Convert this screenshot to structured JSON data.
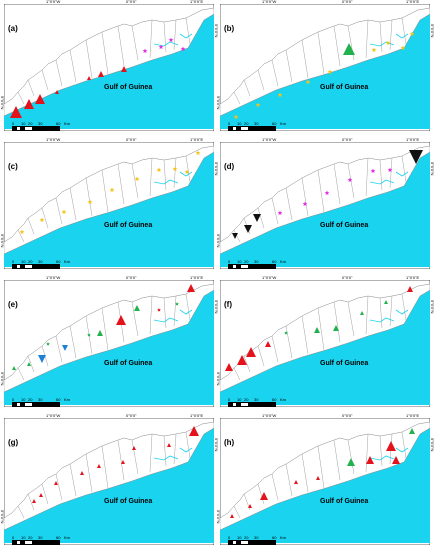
{
  "gulf_label": "Gulf of Guinea",
  "coord_top": [
    "1°0'0\"W",
    "0°0'0\"",
    "1°0'0\"E"
  ],
  "coord_left": [
    "5°0'0\"N"
  ],
  "coord_right": [
    "5°0'0\"N"
  ],
  "scale": {
    "ticks": [
      "0",
      "10",
      "20",
      "30",
      "60"
    ],
    "unit": "Km"
  },
  "colors": {
    "sea": "#19d3ef",
    "land_border": "#888888",
    "red": "#e3121b",
    "green": "#23b14d",
    "blue": "#1e7fd6",
    "black": "#111111",
    "magenta": "#e22ee2",
    "yellow": "#f4c21a"
  },
  "panels": [
    {
      "label": "(a)",
      "markers": [
        {
          "x": 12,
          "y": 108,
          "s": 6,
          "t": "tri",
          "c": "red"
        },
        {
          "x": 25,
          "y": 100,
          "s": 5,
          "t": "tri",
          "c": "red"
        },
        {
          "x": 36,
          "y": 95,
          "s": 5,
          "t": "tri",
          "c": "red"
        },
        {
          "x": 53,
          "y": 88,
          "s": 2,
          "t": "tri",
          "c": "red"
        },
        {
          "x": 85,
          "y": 74,
          "s": 2,
          "t": "tri",
          "c": "red"
        },
        {
          "x": 97,
          "y": 70,
          "s": 3,
          "t": "tri",
          "c": "red"
        },
        {
          "x": 120,
          "y": 65,
          "s": 3,
          "t": "tri",
          "c": "red"
        },
        {
          "x": 141,
          "y": 47,
          "s": 1.5,
          "t": "star",
          "c": "magenta"
        },
        {
          "x": 157,
          "y": 43,
          "s": 1.5,
          "t": "star",
          "c": "magenta"
        },
        {
          "x": 167,
          "y": 36,
          "s": 1.5,
          "t": "star",
          "c": "magenta"
        },
        {
          "x": 179,
          "y": 45,
          "s": 1.5,
          "t": "star",
          "c": "magenta"
        }
      ]
    },
    {
      "label": "(b)",
      "markers": [
        {
          "x": 16,
          "y": 113,
          "s": 1.5,
          "t": "star",
          "c": "yellow"
        },
        {
          "x": 38,
          "y": 101,
          "s": 1.5,
          "t": "star",
          "c": "yellow"
        },
        {
          "x": 60,
          "y": 91,
          "s": 1.5,
          "t": "star",
          "c": "yellow"
        },
        {
          "x": 88,
          "y": 78,
          "s": 1.5,
          "t": "star",
          "c": "yellow"
        },
        {
          "x": 110,
          "y": 68,
          "s": 1.5,
          "t": "star",
          "c": "yellow"
        },
        {
          "x": 129,
          "y": 45,
          "s": 6,
          "t": "tri",
          "c": "green"
        },
        {
          "x": 154,
          "y": 46,
          "s": 1.5,
          "t": "star",
          "c": "yellow"
        },
        {
          "x": 168,
          "y": 39,
          "s": 1.5,
          "t": "star",
          "c": "yellow"
        },
        {
          "x": 183,
          "y": 44,
          "s": 1.5,
          "t": "star",
          "c": "yellow"
        },
        {
          "x": 192,
          "y": 30,
          "s": 1.5,
          "t": "star",
          "c": "yellow"
        }
      ]
    },
    {
      "label": "(c)",
      "markers": [
        {
          "x": 18,
          "y": 90,
          "s": 1.5,
          "t": "star",
          "c": "yellow"
        },
        {
          "x": 38,
          "y": 78,
          "s": 1.5,
          "t": "star",
          "c": "yellow"
        },
        {
          "x": 60,
          "y": 70,
          "s": 1.5,
          "t": "star",
          "c": "yellow"
        },
        {
          "x": 86,
          "y": 60,
          "s": 1.5,
          "t": "star",
          "c": "yellow"
        },
        {
          "x": 108,
          "y": 48,
          "s": 1.5,
          "t": "star",
          "c": "yellow"
        },
        {
          "x": 133,
          "y": 37,
          "s": 1.5,
          "t": "star",
          "c": "yellow"
        },
        {
          "x": 155,
          "y": 28,
          "s": 1.5,
          "t": "star",
          "c": "yellow"
        },
        {
          "x": 171,
          "y": 27,
          "s": 1.5,
          "t": "star",
          "c": "yellow"
        },
        {
          "x": 183,
          "y": 30,
          "s": 1.5,
          "t": "star",
          "c": "yellow"
        },
        {
          "x": 194,
          "y": 11,
          "s": 1.5,
          "t": "star",
          "c": "yellow"
        }
      ]
    },
    {
      "label": "(d)",
      "markers": [
        {
          "x": 15,
          "y": 94,
          "s": 3,
          "t": "tridown",
          "c": "black"
        },
        {
          "x": 28,
          "y": 87,
          "s": 4,
          "t": "tridown",
          "c": "black"
        },
        {
          "x": 37,
          "y": 76,
          "s": 4,
          "t": "tridown",
          "c": "black"
        },
        {
          "x": 60,
          "y": 71,
          "s": 1.5,
          "t": "star",
          "c": "magenta"
        },
        {
          "x": 85,
          "y": 62,
          "s": 1.5,
          "t": "star",
          "c": "magenta"
        },
        {
          "x": 107,
          "y": 51,
          "s": 1.5,
          "t": "star",
          "c": "magenta"
        },
        {
          "x": 130,
          "y": 38,
          "s": 1.5,
          "t": "star",
          "c": "magenta"
        },
        {
          "x": 153,
          "y": 29,
          "s": 1.5,
          "t": "star",
          "c": "magenta"
        },
        {
          "x": 170,
          "y": 28,
          "s": 1.5,
          "t": "star",
          "c": "magenta"
        },
        {
          "x": 196,
          "y": 15,
          "s": 7,
          "t": "tridown",
          "c": "black"
        }
      ]
    },
    {
      "label": "(e)",
      "markers": [
        {
          "x": 10,
          "y": 88,
          "s": 2,
          "t": "tri",
          "c": "green"
        },
        {
          "x": 25,
          "y": 84,
          "s": 2,
          "t": "tri",
          "c": "green"
        },
        {
          "x": 38,
          "y": 79,
          "s": 4,
          "t": "tridown",
          "c": "blue"
        },
        {
          "x": 44,
          "y": 64,
          "s": 1,
          "t": "star",
          "c": "green"
        },
        {
          "x": 61,
          "y": 68,
          "s": 3,
          "t": "tridown",
          "c": "blue"
        },
        {
          "x": 85,
          "y": 55,
          "s": 1,
          "t": "star",
          "c": "green"
        },
        {
          "x": 96,
          "y": 53,
          "s": 3,
          "t": "tri",
          "c": "green"
        },
        {
          "x": 117,
          "y": 40,
          "s": 5,
          "t": "tri",
          "c": "red"
        },
        {
          "x": 133,
          "y": 28,
          "s": 3,
          "t": "tri",
          "c": "green"
        },
        {
          "x": 155,
          "y": 30,
          "s": 1,
          "t": "star",
          "c": "red"
        },
        {
          "x": 173,
          "y": 24,
          "s": 1,
          "t": "star",
          "c": "green"
        },
        {
          "x": 187,
          "y": 8,
          "s": 4,
          "t": "tri",
          "c": "red"
        }
      ]
    },
    {
      "label": "(f)",
      "markers": [
        {
          "x": 9,
          "y": 87,
          "s": 4,
          "t": "tri",
          "c": "red"
        },
        {
          "x": 22,
          "y": 80,
          "s": 5,
          "t": "tri",
          "c": "red"
        },
        {
          "x": 31,
          "y": 72,
          "s": 5,
          "t": "tri",
          "c": "red"
        },
        {
          "x": 48,
          "y": 64,
          "s": 3,
          "t": "tri",
          "c": "red"
        },
        {
          "x": 66,
          "y": 53,
          "s": 1,
          "t": "star",
          "c": "green"
        },
        {
          "x": 97,
          "y": 50,
          "s": 3,
          "t": "tri",
          "c": "green"
        },
        {
          "x": 116,
          "y": 48,
          "s": 3,
          "t": "tri",
          "c": "green"
        },
        {
          "x": 142,
          "y": 33,
          "s": 2,
          "t": "tri",
          "c": "green"
        },
        {
          "x": 166,
          "y": 22,
          "s": 2,
          "t": "tri",
          "c": "green"
        },
        {
          "x": 190,
          "y": 9,
          "s": 3,
          "t": "tri",
          "c": "red"
        }
      ]
    },
    {
      "label": "(g)",
      "markers": [
        {
          "x": 30,
          "y": 83,
          "s": 2,
          "t": "tri",
          "c": "red"
        },
        {
          "x": 37,
          "y": 77,
          "s": 2,
          "t": "tri",
          "c": "red"
        },
        {
          "x": 52,
          "y": 65,
          "s": 2,
          "t": "tri",
          "c": "red"
        },
        {
          "x": 78,
          "y": 55,
          "s": 2,
          "t": "tri",
          "c": "red"
        },
        {
          "x": 95,
          "y": 48,
          "s": 2,
          "t": "tri",
          "c": "red"
        },
        {
          "x": 119,
          "y": 44,
          "s": 2,
          "t": "tri",
          "c": "red"
        },
        {
          "x": 130,
          "y": 30,
          "s": 2,
          "t": "tri",
          "c": "red"
        },
        {
          "x": 165,
          "y": 27,
          "s": 2,
          "t": "tri",
          "c": "red"
        },
        {
          "x": 190,
          "y": 13,
          "s": 5,
          "t": "tri",
          "c": "red"
        }
      ]
    },
    {
      "label": "(h)",
      "markers": [
        {
          "x": 12,
          "y": 98,
          "s": 2,
          "t": "tri",
          "c": "red"
        },
        {
          "x": 30,
          "y": 88,
          "s": 2,
          "t": "tri",
          "c": "red"
        },
        {
          "x": 44,
          "y": 78,
          "s": 4,
          "t": "tri",
          "c": "red"
        },
        {
          "x": 76,
          "y": 64,
          "s": 2,
          "t": "tri",
          "c": "red"
        },
        {
          "x": 98,
          "y": 60,
          "s": 2,
          "t": "tri",
          "c": "red"
        },
        {
          "x": 131,
          "y": 44,
          "s": 4,
          "t": "tri",
          "c": "green"
        },
        {
          "x": 150,
          "y": 42,
          "s": 4,
          "t": "tri",
          "c": "red"
        },
        {
          "x": 171,
          "y": 28,
          "s": 5,
          "t": "tri",
          "c": "red"
        },
        {
          "x": 176,
          "y": 42,
          "s": 4,
          "t": "tri",
          "c": "red"
        },
        {
          "x": 192,
          "y": 13,
          "s": 3,
          "t": "tri",
          "c": "green"
        }
      ]
    }
  ]
}
